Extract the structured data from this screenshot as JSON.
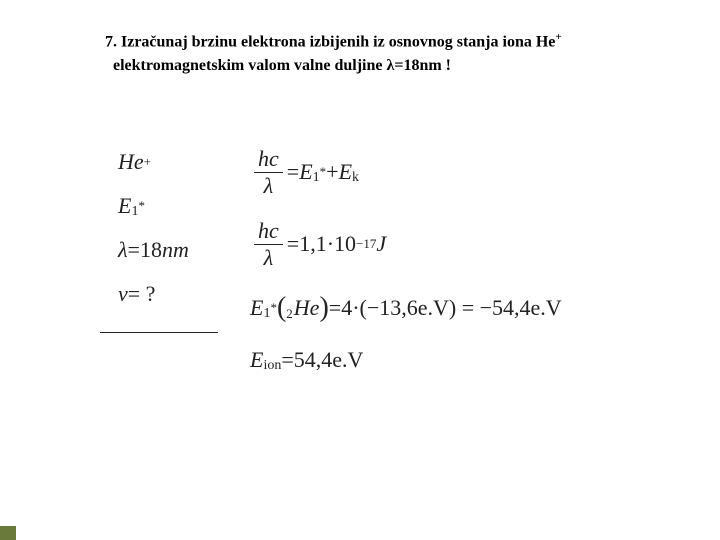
{
  "accent_color": "#6a7a3a",
  "problem": {
    "number": "7.",
    "text_line1": "Izračunaj brzinu elektrona izbijenih iz osnovnog stanja iona He",
    "super_plus": "+",
    "text_line2": "elektromagnetskim valom valne duljine λ=18nm !"
  },
  "given": {
    "r1_he": "He",
    "r1_sup": "+",
    "r2_E": "E",
    "r2_sub": "1",
    "r2_sup": "*",
    "r3_lambda": "λ",
    "r3_eq": " = ",
    "r3_val": "18",
    "r3_unit": "nm",
    "r4_v": "v",
    "r4_eq": " = ?",
    "hr_width": 118
  },
  "work": {
    "eq1": {
      "num": "hc",
      "den": "λ",
      "eq": " = ",
      "E": "E",
      "E_sub": "1",
      "E_sup": "*",
      "plus": " + ",
      "Ek_E": "E",
      "Ek_sub": "k"
    },
    "eq2": {
      "num": "hc",
      "den": "λ",
      "eq": " = ",
      "val": "1,1·10",
      "exp": "−17",
      "unit": " J"
    },
    "eq3": {
      "E": "E",
      "E_sub": "1",
      "E_sup": "*",
      "open": "(",
      "presub": "2",
      "He": "He",
      "close": ")",
      "eq": " = ",
      "rhs": "4·(−13,6e.V) = −54,4e.V"
    },
    "eq4": {
      "E": "E",
      "sub": "ion",
      "eq": " = ",
      "val": "54,4e.V"
    }
  }
}
